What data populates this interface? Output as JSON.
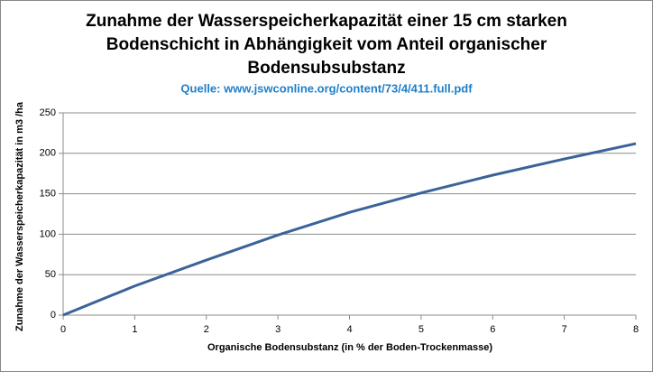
{
  "chart_data": {
    "type": "line",
    "title": [
      "Zunahme der Wasserspeicherkapazität  einer 15 cm starken",
      "Bodenschicht  in Abhängigkeit  vom Anteil organischer",
      "Bodensubsubstanz"
    ],
    "subtitle": "Quelle: www.jswconline.org/content/73/4/411.full.pdf",
    "x_label": "Organische  Bodensubstanz  (in % der Boden-Trockenmasse)",
    "y_label": "Zunahme der Wasserspeicherkapazität  in  m3 /ha",
    "x": [
      0,
      1,
      2,
      3,
      4,
      5,
      6,
      7,
      8
    ],
    "series": [
      {
        "color": "#3a6399",
        "values": [
          0,
          36,
          68,
          99,
          127,
          151,
          173,
          193,
          212
        ]
      }
    ],
    "xlim": [
      0,
      8
    ],
    "xticks": [
      0,
      1,
      2,
      3,
      4,
      5,
      6,
      7,
      8
    ],
    "ylim": [
      0,
      250
    ],
    "yticks": [
      0,
      50,
      100,
      150,
      200,
      250
    ],
    "grid": true
  }
}
